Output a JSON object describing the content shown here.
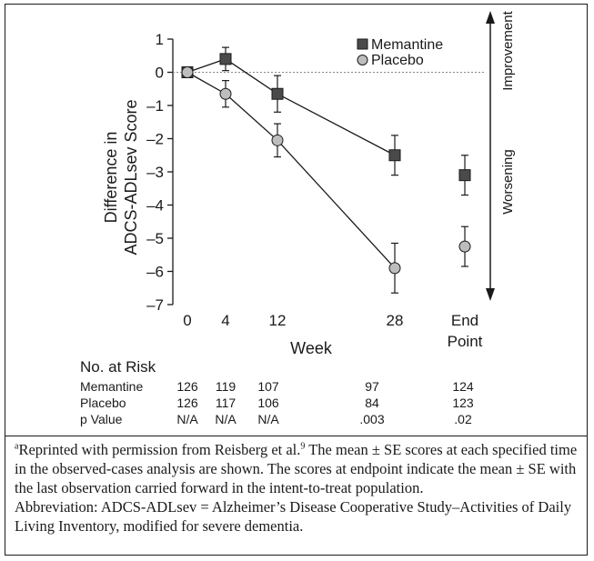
{
  "chart_data": {
    "type": "line",
    "ylabel_line1": "Difference in",
    "ylabel_line2": "ADCS-ADLsev Score",
    "xlabel": "Week",
    "ylim": [
      -7,
      1
    ],
    "yticks": [
      "1",
      "0",
      "–1",
      "–2",
      "–3",
      "–4",
      "–5",
      "–6",
      "–7"
    ],
    "ytick_values": [
      1,
      0,
      -1,
      -2,
      -3,
      -4,
      -5,
      -6,
      -7
    ],
    "xticks": [
      "0",
      "4",
      "12",
      "28",
      "End",
      "Point"
    ],
    "series": [
      {
        "name": "Memantine",
        "marker": "square",
        "color": "#4a4a4a",
        "x": [
          0,
          4,
          12,
          28,
          "End Point"
        ],
        "values": [
          0,
          0.4,
          -0.65,
          -2.5,
          -3.1
        ],
        "se": [
          0.1,
          0.35,
          0.55,
          0.6,
          0.6
        ],
        "connected_through": 28
      },
      {
        "name": "Placebo",
        "marker": "circle",
        "color": "#bdbdbd",
        "x": [
          0,
          4,
          12,
          28,
          "End Point"
        ],
        "values": [
          0,
          -0.65,
          -2.05,
          -5.9,
          -5.25
        ],
        "se": [
          0.1,
          0.4,
          0.5,
          0.75,
          0.6
        ],
        "connected_through": 28
      }
    ],
    "reference_line": 0,
    "side_labels": {
      "up": "Improvement",
      "down": "Worsening"
    },
    "legend_position": "top-right"
  },
  "risk_table": {
    "title": "No. at Risk",
    "rows": [
      {
        "label": "Memantine",
        "values": [
          "126",
          "119",
          "107",
          "97",
          "124"
        ]
      },
      {
        "label": "Placebo",
        "values": [
          "126",
          "117",
          "106",
          "84",
          "123"
        ]
      },
      {
        "label": "p Value",
        "values": [
          "N/A",
          "N/A",
          "N/A",
          ".003",
          ".02"
        ]
      }
    ]
  },
  "footnote": {
    "marker": "a",
    "text1": "Reprinted with permission from Reisberg et al.",
    "ref": "9",
    "text2": " The mean ± SE scores at each specified time in the observed-cases analysis are shown. The scores at endpoint indicate the mean ± SE with the last observation carried forward in the intent-to-treat population.",
    "abbreviation": "Abbreviation: ADCS-ADLsev = Alzheimer’s Disease Cooperative Study–Activities of Daily Living Inventory, modified for severe dementia."
  }
}
